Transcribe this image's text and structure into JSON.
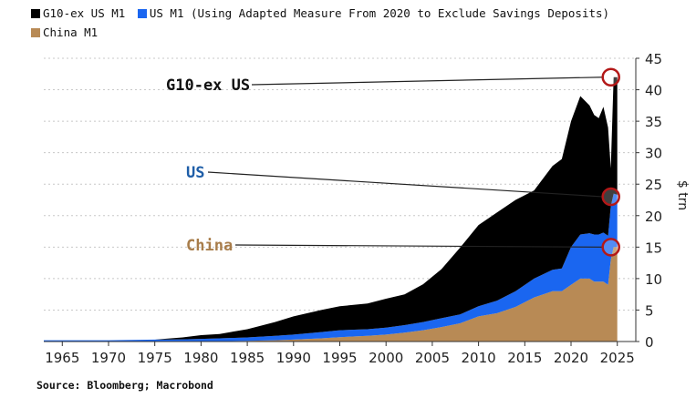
{
  "legend": [
    {
      "label": "G10-ex US M1",
      "color": "#000000"
    },
    {
      "label": "US M1 (Using Adapted Measure From 2020 to Exclude Savings Deposits)",
      "color": "#1a66f0"
    },
    {
      "label": "China M1",
      "color": "#b88a55"
    }
  ],
  "source": "Source: Bloomberg; Macrobond",
  "chart_data": {
    "type": "area",
    "stacked": true,
    "ylabel": "$ trn",
    "ylim": [
      0,
      45
    ],
    "yticks": [
      0,
      5,
      10,
      15,
      20,
      25,
      30,
      35,
      40,
      45
    ],
    "xlim": [
      1963,
      2027
    ],
    "xticks": [
      1965,
      1970,
      1975,
      1980,
      1985,
      1990,
      1995,
      2000,
      2005,
      2010,
      2015,
      2020,
      2025
    ],
    "grid": true,
    "x": [
      1963,
      1970,
      1975,
      1978,
      1980,
      1982,
      1985,
      1988,
      1990,
      1993,
      1995,
      1998,
      2000,
      2002,
      2004,
      2006,
      2008,
      2010,
      2012,
      2014,
      2016,
      2018,
      2019,
      2020,
      2021,
      2022,
      2022.5,
      2023,
      2023.5,
      2024,
      2024.3,
      2024.6,
      2025
    ],
    "series": [
      {
        "name": "China M1",
        "color": "#b88a55",
        "values": [
          0,
          0,
          0,
          0,
          0.02,
          0.05,
          0.1,
          0.2,
          0.3,
          0.5,
          0.7,
          0.9,
          1.1,
          1.4,
          1.8,
          2.3,
          2.9,
          4.0,
          4.5,
          5.5,
          7.0,
          8.0,
          8.0,
          9.0,
          10.0,
          10.0,
          9.5,
          9.5,
          9.5,
          9.0,
          13.0,
          15.0,
          15.0
        ]
      },
      {
        "name": "US M1 (Using Adapted Measure From 2020 to Exclude Savings Deposits)",
        "color": "#1a66f0",
        "values": [
          0.2,
          0.2,
          0.3,
          0.35,
          0.4,
          0.45,
          0.55,
          0.7,
          0.8,
          1.0,
          1.1,
          1.05,
          1.1,
          1.2,
          1.3,
          1.4,
          1.4,
          1.6,
          2.0,
          2.5,
          3.0,
          3.4,
          3.6,
          6.0,
          7.0,
          7.2,
          7.5,
          7.5,
          7.8,
          7.8,
          8.5,
          8.5,
          8.3
        ]
      },
      {
        "name": "G10-ex US M1",
        "color": "#000000",
        "values": [
          0,
          0,
          0,
          0.3,
          0.6,
          0.7,
          1.3,
          2.2,
          2.9,
          3.5,
          3.8,
          4.1,
          4.6,
          4.9,
          6.0,
          7.8,
          10.6,
          12.9,
          14.0,
          14.5,
          14.0,
          16.5,
          17.4,
          20.0,
          22.0,
          20.3,
          19.0,
          18.5,
          20.0,
          17.2,
          6.0,
          18.5,
          18.7
        ]
      }
    ],
    "annotations": [
      {
        "label": "G10-ex US",
        "year": 2025,
        "value": 42.0,
        "color": "#111111"
      },
      {
        "label": "US",
        "year": 2025,
        "value": 23.0,
        "color": "#1f5ea8"
      },
      {
        "label": "China",
        "year": 2025,
        "value": 15.0,
        "color": "#a87d4b"
      }
    ]
  }
}
